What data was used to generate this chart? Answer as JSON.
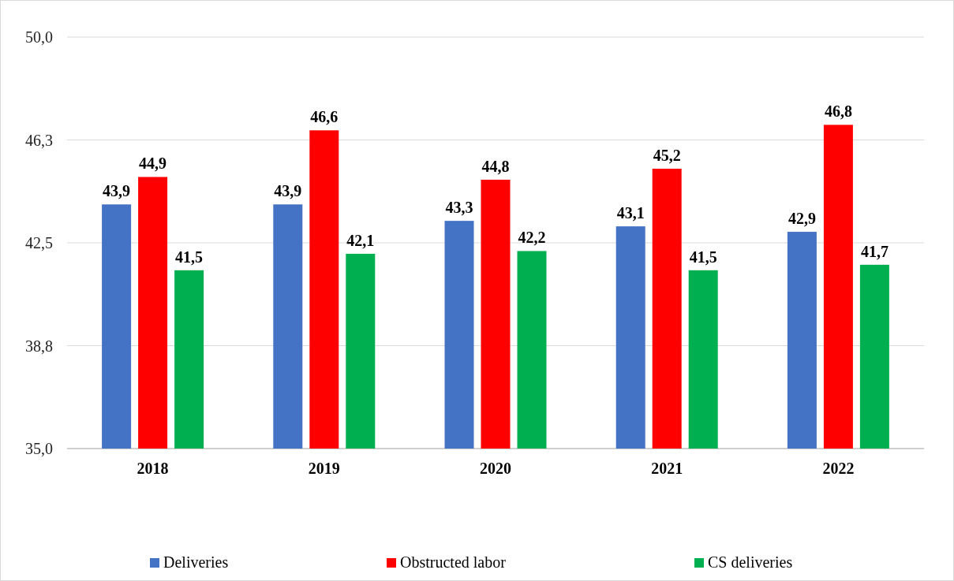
{
  "chart_data": {
    "type": "bar",
    "categories": [
      "2018",
      "2019",
      "2020",
      "2021",
      "2022"
    ],
    "series": [
      {
        "name": "Deliveries",
        "color": "#4472c4",
        "values": [
          43.9,
          43.9,
          43.3,
          43.1,
          42.9
        ],
        "value_labels": [
          "43,9",
          "43,9",
          "43,3",
          "43,1",
          "42,9"
        ]
      },
      {
        "name": "Obstructed labor",
        "color": "#ff0000",
        "values": [
          44.9,
          46.6,
          44.8,
          45.2,
          46.8
        ],
        "value_labels": [
          "44,9",
          "46,6",
          "44,8",
          "45,2",
          "46,8"
        ]
      },
      {
        "name": "CS deliveries",
        "color": "#00b050",
        "values": [
          41.5,
          42.1,
          42.2,
          41.5,
          41.7
        ],
        "value_labels": [
          "41,5",
          "42,1",
          "42,2",
          "41,5",
          "41,7"
        ]
      }
    ],
    "ylim": [
      35,
      50
    ],
    "yticks": [
      {
        "value": 35,
        "label": "35,0"
      },
      {
        "value": 38.75,
        "label": "38,8"
      },
      {
        "value": 42.5,
        "label": "42,5"
      },
      {
        "value": 46.25,
        "label": "46,3"
      },
      {
        "value": 50,
        "label": "50,0"
      }
    ],
    "grid": "y",
    "legend": "bottom"
  }
}
